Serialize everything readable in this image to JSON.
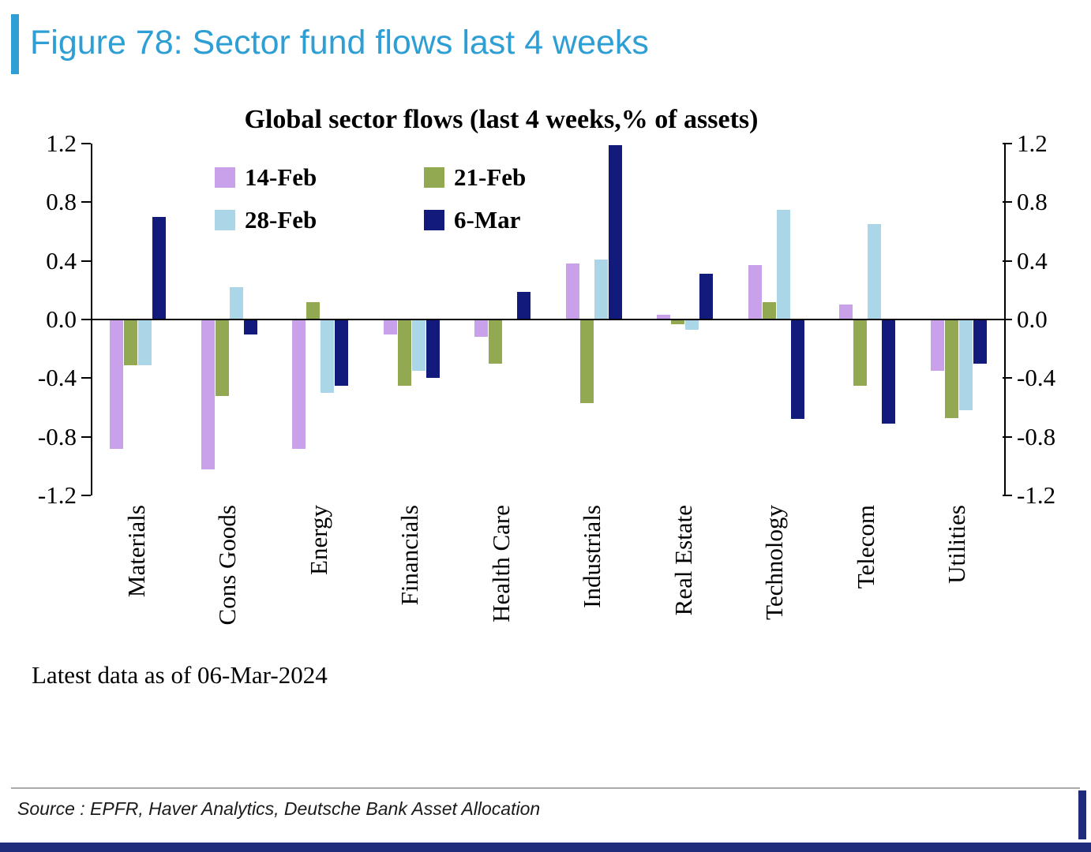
{
  "figure": {
    "title": "Figure 78: Sector fund flows last 4 weeks"
  },
  "colors": {
    "accent": "#2E9FD4",
    "navy_strip": "#1F2C7C",
    "axis": "#000000"
  },
  "chart_data": {
    "type": "bar",
    "title": "Global sector flows (last 4 weeks,% of assets)",
    "ylim": [
      -1.2,
      1.2
    ],
    "yticks": [
      1.2,
      0.8,
      0.4,
      0.0,
      -0.4,
      -0.8,
      -1.2
    ],
    "grid": false,
    "legend_position": "inside-top-left",
    "dual_axis_labels": true,
    "categories": [
      "Materials",
      "Cons Goods",
      "Energy",
      "Financials",
      "Health Care",
      "Industrials",
      "Real Estate",
      "Technology",
      "Telecom",
      "Utilities"
    ],
    "series": [
      {
        "name": "14-Feb",
        "color": "#C9A0EA",
        "values": [
          -0.88,
          -1.02,
          -0.88,
          -0.1,
          -0.12,
          0.38,
          0.03,
          0.37,
          0.1,
          -0.35
        ]
      },
      {
        "name": "21-Feb",
        "color": "#93A951",
        "values": [
          -0.31,
          -0.52,
          0.12,
          -0.45,
          -0.3,
          -0.57,
          -0.03,
          0.12,
          -0.45,
          -0.67
        ]
      },
      {
        "name": "28-Feb",
        "color": "#ABD6E8",
        "values": [
          -0.31,
          0.22,
          -0.5,
          -0.35,
          0.0,
          0.41,
          -0.07,
          0.75,
          0.65,
          -0.62
        ]
      },
      {
        "name": "6-Mar",
        "color": "#121A7B",
        "values": [
          0.7,
          -0.1,
          -0.45,
          -0.4,
          0.19,
          1.19,
          0.31,
          -0.68,
          -0.71,
          -0.3
        ]
      }
    ]
  },
  "footer": {
    "latest_note": "Latest data as of 06-Mar-2024",
    "source": "Source : EPFR, Haver Analytics, Deutsche Bank Asset Allocation"
  }
}
